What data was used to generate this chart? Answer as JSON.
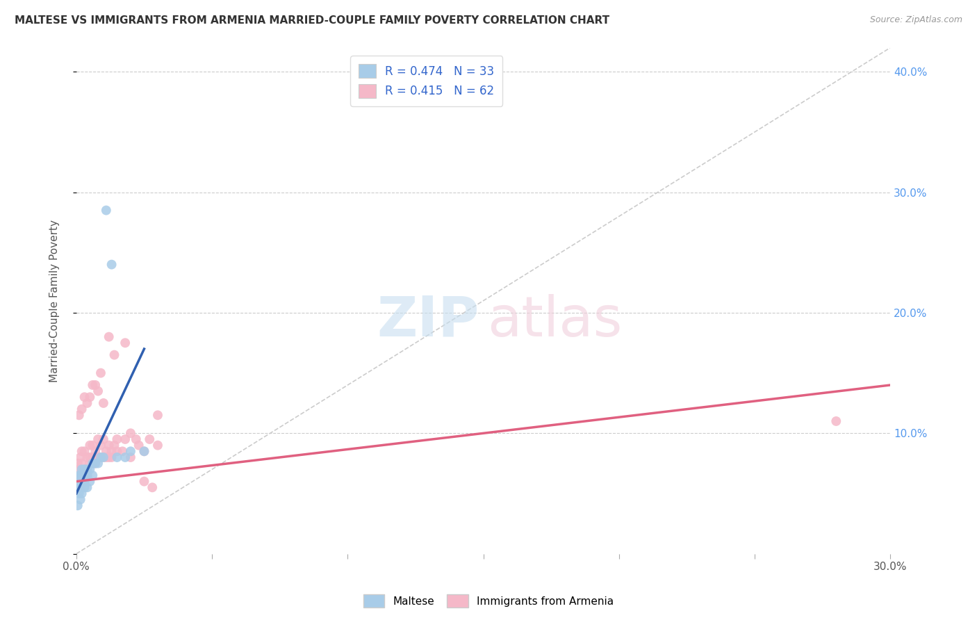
{
  "title": "MALTESE VS IMMIGRANTS FROM ARMENIA MARRIED-COUPLE FAMILY POVERTY CORRELATION CHART",
  "source": "Source: ZipAtlas.com",
  "ylabel": "Married-Couple Family Poverty",
  "xlim": [
    0.0,
    0.3
  ],
  "ylim": [
    0.0,
    0.42
  ],
  "legend_r1": "R = 0.474",
  "legend_n1": "N = 33",
  "legend_r2": "R = 0.415",
  "legend_n2": "N = 62",
  "color_blue": "#a8cce8",
  "color_pink": "#f5b8c8",
  "color_blue_line": "#3060b0",
  "color_pink_line": "#e06080",
  "color_diag_line": "#cccccc",
  "maltese_x": [
    0.0005,
    0.0008,
    0.001,
    0.001,
    0.001,
    0.0012,
    0.0015,
    0.0015,
    0.002,
    0.002,
    0.002,
    0.002,
    0.003,
    0.003,
    0.003,
    0.003,
    0.004,
    0.004,
    0.004,
    0.005,
    0.005,
    0.006,
    0.006,
    0.007,
    0.008,
    0.009,
    0.01,
    0.011,
    0.013,
    0.015,
    0.018,
    0.02,
    0.025
  ],
  "maltese_y": [
    0.04,
    0.055,
    0.05,
    0.06,
    0.065,
    0.055,
    0.045,
    0.065,
    0.05,
    0.06,
    0.065,
    0.07,
    0.055,
    0.06,
    0.065,
    0.07,
    0.055,
    0.065,
    0.07,
    0.06,
    0.07,
    0.065,
    0.075,
    0.075,
    0.075,
    0.08,
    0.08,
    0.285,
    0.24,
    0.08,
    0.08,
    0.085,
    0.085
  ],
  "armenia_x": [
    0.0005,
    0.001,
    0.001,
    0.0015,
    0.002,
    0.002,
    0.002,
    0.003,
    0.003,
    0.003,
    0.004,
    0.004,
    0.004,
    0.005,
    0.005,
    0.005,
    0.006,
    0.006,
    0.006,
    0.007,
    0.007,
    0.008,
    0.008,
    0.009,
    0.009,
    0.01,
    0.01,
    0.011,
    0.011,
    0.012,
    0.012,
    0.013,
    0.013,
    0.014,
    0.015,
    0.015,
    0.017,
    0.018,
    0.02,
    0.02,
    0.022,
    0.023,
    0.025,
    0.025,
    0.027,
    0.028,
    0.03,
    0.03,
    0.001,
    0.002,
    0.003,
    0.004,
    0.005,
    0.006,
    0.007,
    0.008,
    0.009,
    0.01,
    0.012,
    0.014,
    0.018,
    0.28
  ],
  "armenia_y": [
    0.075,
    0.065,
    0.07,
    0.08,
    0.065,
    0.075,
    0.085,
    0.065,
    0.07,
    0.085,
    0.065,
    0.07,
    0.08,
    0.075,
    0.08,
    0.09,
    0.075,
    0.08,
    0.09,
    0.075,
    0.085,
    0.08,
    0.095,
    0.08,
    0.09,
    0.08,
    0.095,
    0.08,
    0.085,
    0.08,
    0.09,
    0.08,
    0.085,
    0.09,
    0.085,
    0.095,
    0.085,
    0.095,
    0.08,
    0.1,
    0.095,
    0.09,
    0.085,
    0.06,
    0.095,
    0.055,
    0.09,
    0.115,
    0.115,
    0.12,
    0.13,
    0.125,
    0.13,
    0.14,
    0.14,
    0.135,
    0.15,
    0.125,
    0.18,
    0.165,
    0.175,
    0.11
  ],
  "blue_line_x": [
    0.0,
    0.025
  ],
  "blue_line_y": [
    0.05,
    0.17
  ],
  "pink_line_x": [
    0.0,
    0.3
  ],
  "pink_line_y": [
    0.06,
    0.14
  ]
}
